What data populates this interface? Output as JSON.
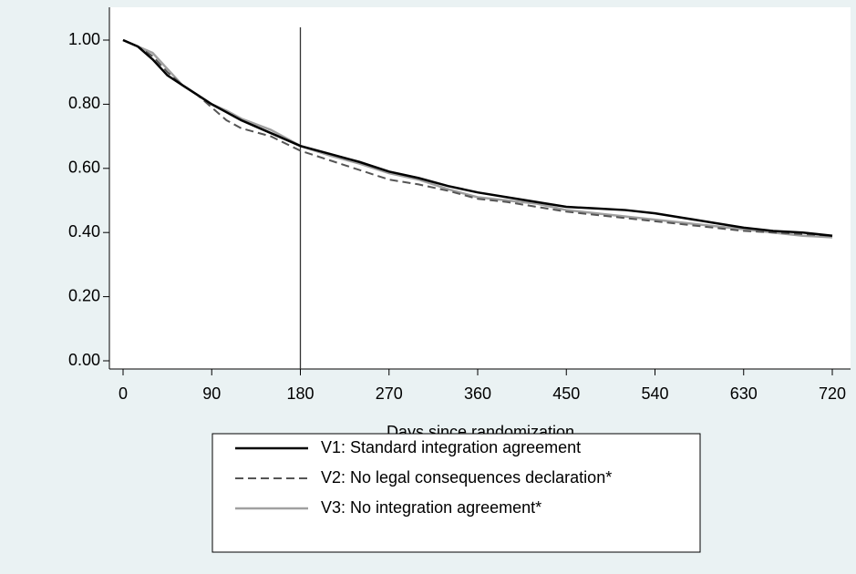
{
  "chart_data": {
    "type": "line",
    "xlabel": "Days since randomization",
    "x": [
      0,
      15,
      30,
      45,
      60,
      75,
      90,
      105,
      120,
      150,
      180,
      210,
      240,
      270,
      300,
      330,
      360,
      390,
      420,
      450,
      480,
      510,
      540,
      570,
      600,
      630,
      660,
      690,
      720
    ],
    "series": [
      {
        "name": "V1: Standard integration agreement",
        "color": "#000000",
        "line_style": "solid",
        "values": [
          1.0,
          0.98,
          0.94,
          0.89,
          0.86,
          0.83,
          0.8,
          0.775,
          0.75,
          0.71,
          0.67,
          0.645,
          0.62,
          0.59,
          0.57,
          0.545,
          0.525,
          0.51,
          0.495,
          0.48,
          0.475,
          0.47,
          0.46,
          0.445,
          0.43,
          0.415,
          0.405,
          0.4,
          0.39
        ]
      },
      {
        "name": "V2: No legal consequences declaration*",
        "color": "#555555",
        "line_style": "dashed",
        "values": [
          1.0,
          0.98,
          0.95,
          0.9,
          0.86,
          0.83,
          0.79,
          0.75,
          0.725,
          0.7,
          0.655,
          0.625,
          0.595,
          0.565,
          0.55,
          0.53,
          0.505,
          0.495,
          0.48,
          0.465,
          0.455,
          0.445,
          0.435,
          0.425,
          0.415,
          0.405,
          0.4,
          0.395,
          0.39
        ]
      },
      {
        "name": "V3: No integration agreement*",
        "color": "#a0a0a0",
        "line_style": "solid",
        "values": [
          1.0,
          0.98,
          0.96,
          0.91,
          0.86,
          0.83,
          0.8,
          0.78,
          0.755,
          0.72,
          0.67,
          0.64,
          0.615,
          0.585,
          0.565,
          0.535,
          0.51,
          0.5,
          0.49,
          0.47,
          0.46,
          0.45,
          0.44,
          0.43,
          0.42,
          0.41,
          0.4,
          0.39,
          0.385
        ]
      }
    ],
    "xlim": [
      0,
      720
    ],
    "ylim": [
      0,
      1
    ],
    "xticks": [
      0,
      90,
      180,
      270,
      360,
      450,
      540,
      630,
      720
    ],
    "yticks": [
      {
        "value": 0,
        "label": "0.00"
      },
      {
        "value": 0.2,
        "label": "0.20"
      },
      {
        "value": 0.4,
        "label": "0.40"
      },
      {
        "value": 0.6,
        "label": "0.60"
      },
      {
        "value": 0.8,
        "label": "0.80"
      },
      {
        "value": 1,
        "label": "1.00"
      }
    ],
    "vlines": [
      180
    ],
    "grid": false,
    "legend": "bottom"
  }
}
